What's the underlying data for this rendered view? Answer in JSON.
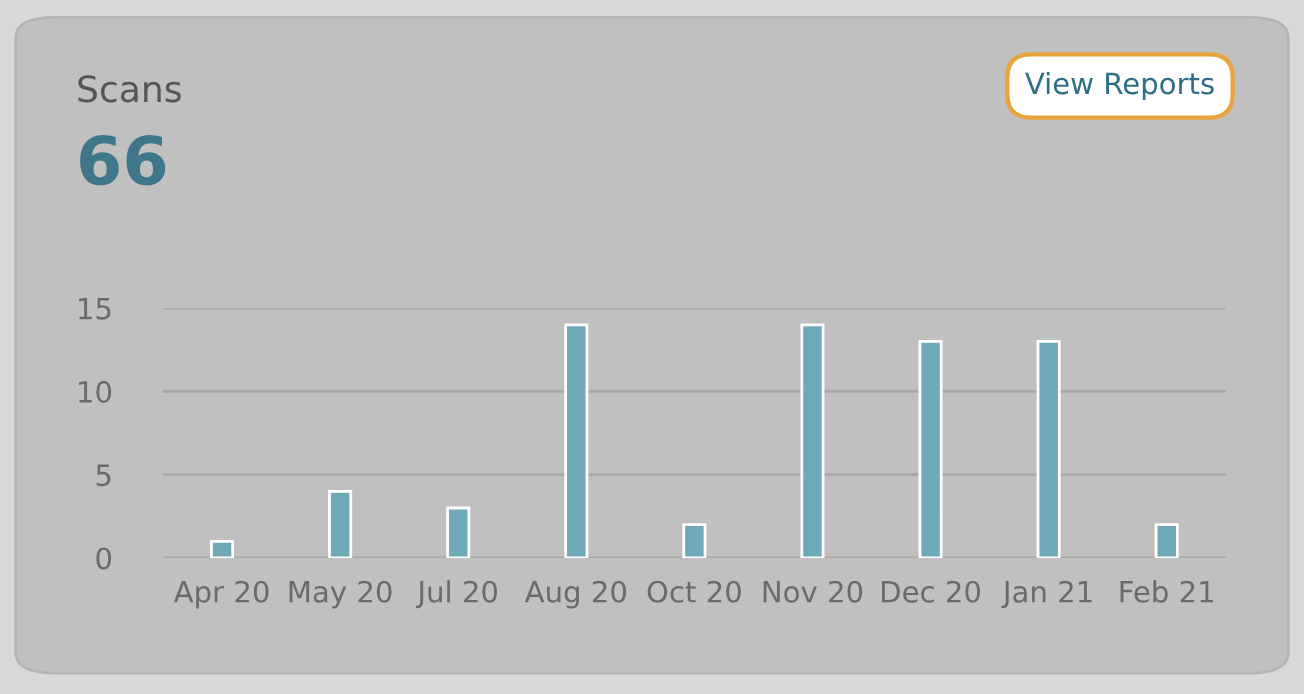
{
  "chart_data": {
    "type": "bar",
    "title": "Scans",
    "subtitle": "66",
    "annotations": [
      "View Reports"
    ],
    "categories": [
      "Apr 20",
      "May 20",
      "Jul 20",
      "Aug 20",
      "Oct 20",
      "Nov 20",
      "Dec 20",
      "Jan 21",
      "Feb 21"
    ],
    "values": [
      1,
      4,
      3,
      14,
      2,
      14,
      13,
      13,
      2
    ],
    "color": "#6fa8b8",
    "ylim": [
      0,
      15
    ],
    "yticks": [
      0,
      5,
      10,
      15
    ],
    "grid": "y"
  }
}
